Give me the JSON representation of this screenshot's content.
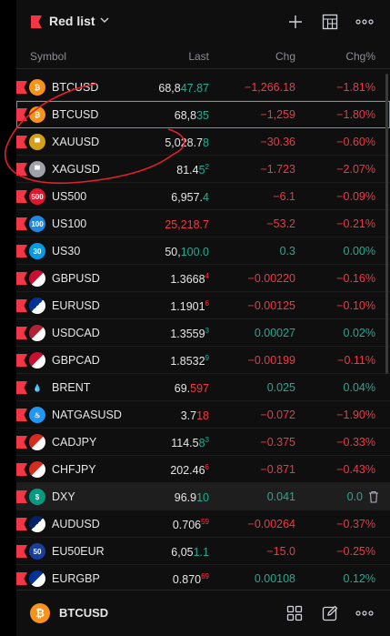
{
  "header": {
    "title": "Red list",
    "flag_color": "#f23645",
    "buttons": [
      "add-icon",
      "table-icon",
      "more-icon"
    ]
  },
  "columns": {
    "symbol": "Symbol",
    "last": "Last",
    "chg": "Chg",
    "pct": "Chg%"
  },
  "rows": [
    {
      "symbol": "BTCUSD",
      "icon": "btc-icon",
      "icon_text": "₿",
      "icon_color": "#f7931a",
      "last": "68,847.87",
      "last_main": "68,8",
      "last_hl": "47.87",
      "last_sup": "",
      "last_hl_color": "green",
      "chg": "−1,266.18",
      "chg_color": "red",
      "pct": "−1.81%",
      "pct_color": "red"
    },
    {
      "symbol": "BTCUSD",
      "icon": "btc-icon",
      "icon_text": "₿",
      "icon_color": "#f7931a",
      "last": "68,835",
      "last_main": "68,8",
      "last_hl": "35",
      "last_sup": "",
      "last_hl_color": "green",
      "chg": "−1,259",
      "chg_color": "red",
      "pct": "−1.80%",
      "pct_color": "red",
      "selected": true
    },
    {
      "symbol": "XAUUSD",
      "icon": "gold-icon",
      "icon_text": "▀",
      "icon_color": "#d4a017",
      "last": "5,028.78",
      "last_main": "5,028.7",
      "last_hl": "8",
      "last_sup": "",
      "last_hl_color": "green",
      "chg": "−30.36",
      "chg_color": "red",
      "pct": "−0.60%",
      "pct_color": "red"
    },
    {
      "symbol": "XAGUSD",
      "icon": "silver-icon",
      "icon_text": "▀",
      "icon_color": "#9ea3ab",
      "last": "81.452",
      "last_main": "81.4",
      "last_hl": "5",
      "last_sup": "2",
      "last_hl_color": "green",
      "chg": "−1.723",
      "chg_color": "red",
      "pct": "−2.07%",
      "pct_color": "red"
    },
    {
      "symbol": "US500",
      "icon": "us500-icon",
      "icon_text": "500",
      "icon_color": "#e4142b",
      "last": "6,957.4",
      "last_main": "6,957.",
      "last_hl": "4",
      "last_sup": "",
      "last_hl_color": "green",
      "chg": "−6.1",
      "chg_color": "red",
      "pct": "−0.09%",
      "pct_color": "red"
    },
    {
      "symbol": "US100",
      "icon": "us100-icon",
      "icon_text": "100",
      "icon_color": "#1e88e5",
      "last": "25,218.7",
      "last_main": "",
      "last_hl": "25,218.7",
      "last_sup": "",
      "last_hl_color": "red",
      "chg": "−53.2",
      "chg_color": "red",
      "pct": "−0.21%",
      "pct_color": "red"
    },
    {
      "symbol": "US30",
      "icon": "us30-icon",
      "icon_text": "30",
      "icon_color": "#039be5",
      "last": "50,100.0",
      "last_main": "50,",
      "last_hl": "100.0",
      "last_sup": "",
      "last_hl_color": "green",
      "chg": "0.3",
      "chg_color": "green",
      "pct": "0.00%",
      "pct_color": "green"
    },
    {
      "symbol": "GBPUSD",
      "icon": "gbpusd-flag-icon",
      "icon_text": "",
      "icon_color": "#c8102e",
      "last": "1.36684",
      "last_main": "1.3668",
      "last_hl": "",
      "last_sup": "4",
      "last_hl_color": "red",
      "chg": "−0.00220",
      "chg_color": "red",
      "pct": "−0.16%",
      "pct_color": "red"
    },
    {
      "symbol": "EURUSD",
      "icon": "eurusd-flag-icon",
      "icon_text": "",
      "icon_color": "#003399",
      "last": "1.19016",
      "last_main": "1.1901",
      "last_hl": "",
      "last_sup": "6",
      "last_hl_color": "red",
      "chg": "−0.00125",
      "chg_color": "red",
      "pct": "−0.10%",
      "pct_color": "red"
    },
    {
      "symbol": "USDCAD",
      "icon": "usdcad-flag-icon",
      "icon_text": "",
      "icon_color": "#b22234",
      "last": "1.35593",
      "last_main": "1.3559",
      "last_hl": "",
      "last_sup": "3",
      "last_hl_color": "green",
      "chg": "0.00027",
      "chg_color": "green",
      "pct": "0.02%",
      "pct_color": "green"
    },
    {
      "symbol": "GBPCAD",
      "icon": "gbpcad-flag-icon",
      "icon_text": "",
      "icon_color": "#c8102e",
      "last": "1.85329",
      "last_main": "1.8532",
      "last_hl": "",
      "last_sup": "9",
      "last_hl_color": "green",
      "chg": "−0.00199",
      "chg_color": "red",
      "pct": "−0.11%",
      "pct_color": "red"
    },
    {
      "symbol": "BRENT",
      "icon": "oil-drop-icon",
      "icon_text": "💧",
      "icon_color": "#0f0f0f",
      "last": "69.597",
      "last_main": "69.",
      "last_hl": "597",
      "last_sup": "",
      "last_hl_color": "red",
      "chg": "0.025",
      "chg_color": "green",
      "pct": "0.04%",
      "pct_color": "green"
    },
    {
      "symbol": "NATGASUSD",
      "icon": "flame-icon",
      "icon_text": "♨",
      "icon_color": "#2196f3",
      "last": "3.718",
      "last_main": "3.7",
      "last_hl": "18",
      "last_sup": "",
      "last_hl_color": "red",
      "chg": "−0.072",
      "chg_color": "red",
      "pct": "−1.90%",
      "pct_color": "red"
    },
    {
      "symbol": "CADJPY",
      "icon": "cadjpy-flag-icon",
      "icon_text": "",
      "icon_color": "#d52b1e",
      "last": "114.583",
      "last_main": "114.5",
      "last_hl": "8",
      "last_sup": "3",
      "last_hl_color": "green",
      "chg": "−0.375",
      "chg_color": "red",
      "pct": "−0.33%",
      "pct_color": "red"
    },
    {
      "symbol": "CHFJPY",
      "icon": "chfjpy-flag-icon",
      "icon_text": "",
      "icon_color": "#d52b1e",
      "last": "202.466",
      "last_main": "202.46",
      "last_hl": "",
      "last_sup": "6",
      "last_hl_color": "red",
      "chg": "−0.871",
      "chg_color": "red",
      "pct": "−0.43%",
      "pct_color": "red"
    },
    {
      "symbol": "DXY",
      "icon": "dollar-icon",
      "icon_text": "$",
      "icon_color": "#089981",
      "last": "96.910",
      "last_main": "96.9",
      "last_hl": "10",
      "last_sup": "",
      "last_hl_color": "green",
      "chg": "0.041",
      "chg_color": "green",
      "pct": "0.0",
      "pct_color": "green",
      "hovered": true
    },
    {
      "symbol": "AUDUSD",
      "icon": "audusd-flag-icon",
      "icon_text": "",
      "icon_color": "#012169",
      "last": "0.70659",
      "last_main": "0.706",
      "last_hl": "",
      "last_sup": "59",
      "last_hl_color": "red",
      "chg": "−0.00264",
      "chg_color": "red",
      "pct": "−0.37%",
      "pct_color": "red"
    },
    {
      "symbol": "EU50EUR",
      "icon": "eu50-icon",
      "icon_text": "50",
      "icon_color": "#1a3e9e",
      "last": "6,051.1",
      "last_main": "6,05",
      "last_hl": "1.1",
      "last_sup": "",
      "last_hl_color": "green",
      "chg": "−15.0",
      "chg_color": "red",
      "pct": "−0.25%",
      "pct_color": "red"
    },
    {
      "symbol": "EURGBP",
      "icon": "eurgbp-flag-icon",
      "icon_text": "",
      "icon_color": "#003399",
      "last": "0.87069",
      "last_main": "0.870",
      "last_hl": "",
      "last_sup": "69",
      "last_hl_color": "red",
      "chg": "0.00108",
      "chg_color": "green",
      "pct": "0.12%",
      "pct_color": "green"
    }
  ],
  "footer": {
    "symbol": "BTCUSD",
    "icon_text": "₿",
    "buttons": [
      "grid-icon",
      "edit-icon",
      "more-icon"
    ]
  },
  "colors": {
    "red": "#f23645",
    "green": "#22ab94",
    "annotation": "#e0202a"
  }
}
